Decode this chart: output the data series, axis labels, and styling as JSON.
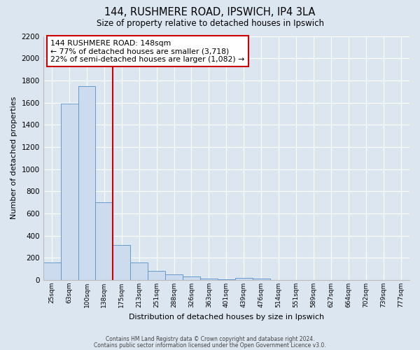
{
  "title": "144, RUSHMERE ROAD, IPSWICH, IP4 3LA",
  "subtitle": "Size of property relative to detached houses in Ipswich",
  "xlabel": "Distribution of detached houses by size in Ipswich",
  "ylabel": "Number of detached properties",
  "bar_color": "#ccdcee",
  "bar_edge_color": "#6699cc",
  "background_color": "#dce6f0",
  "fig_background_color": "#dce6f0",
  "bin_labels": [
    "25sqm",
    "63sqm",
    "100sqm",
    "138sqm",
    "175sqm",
    "213sqm",
    "251sqm",
    "288sqm",
    "326sqm",
    "363sqm",
    "401sqm",
    "439sqm",
    "476sqm",
    "514sqm",
    "551sqm",
    "589sqm",
    "627sqm",
    "664sqm",
    "702sqm",
    "739sqm",
    "777sqm"
  ],
  "bin_values": [
    160,
    1590,
    1750,
    700,
    315,
    155,
    85,
    50,
    30,
    15,
    5,
    20,
    15,
    0,
    0,
    0,
    0,
    0,
    0,
    0,
    0
  ],
  "property_line_color": "#cc0000",
  "annotation_text": "144 RUSHMERE ROAD: 148sqm\n← 77% of detached houses are smaller (3,718)\n22% of semi-detached houses are larger (1,082) →",
  "annotation_box_color": "#ffffff",
  "annotation_box_edge_color": "#cc0000",
  "ylim": [
    0,
    2200
  ],
  "yticks": [
    0,
    200,
    400,
    600,
    800,
    1000,
    1200,
    1400,
    1600,
    1800,
    2000,
    2200
  ],
  "footer1": "Contains HM Land Registry data © Crown copyright and database right 2024.",
  "footer2": "Contains public sector information licensed under the Open Government Licence v3.0."
}
